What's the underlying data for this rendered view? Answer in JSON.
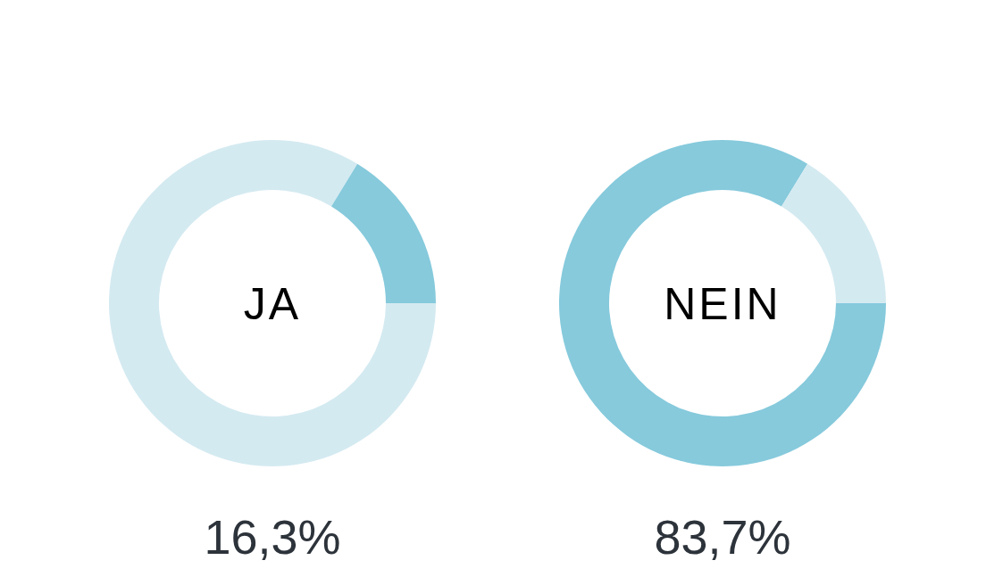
{
  "chart_data": [
    {
      "type": "donut",
      "title": "JA",
      "categories": [
        null,
        null
      ],
      "values": [
        83.7,
        16.3
      ],
      "colors": [
        "#d4eaf1",
        "#86cadc"
      ],
      "annotations": [
        "16,3%"
      ]
    },
    {
      "type": "donut",
      "title": "NEIN",
      "categories": [
        null,
        null
      ],
      "values": [
        83.7,
        16.3
      ],
      "colors": [
        "#86cadc",
        "#d4eaf1"
      ],
      "annotations": [
        "83,7%"
      ]
    }
  ]
}
